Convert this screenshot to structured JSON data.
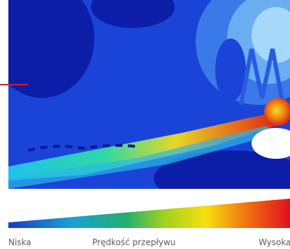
{
  "legend": {
    "low": "Niska",
    "title": "Prędkość przepływu",
    "high": "Wysoka"
  }
}
